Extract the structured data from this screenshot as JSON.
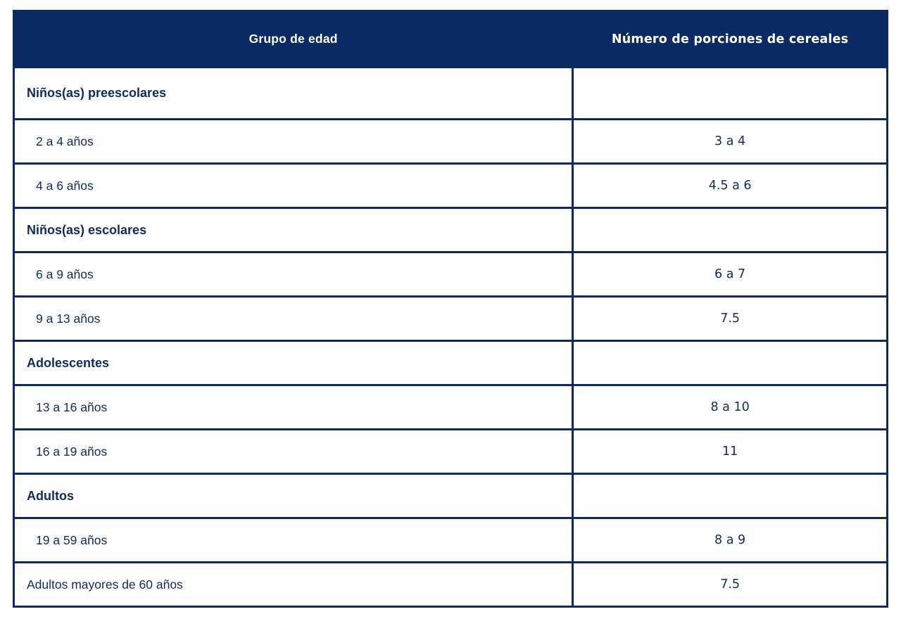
{
  "colors": {
    "navy": "#0b2a63",
    "header_text": "#ffffff",
    "body_text": "#0e2d63",
    "background": "#ffffff"
  },
  "table": {
    "headers": [
      {
        "label": "Grupo de edad"
      },
      {
        "label": "Número de porciones de cereales"
      }
    ],
    "rows": [
      {
        "type": "group",
        "label": "Niños(as) preescolares",
        "value": ""
      },
      {
        "type": "item",
        "label": "2 a 4 años",
        "value": "3 a 4"
      },
      {
        "type": "item",
        "label": "4 a 6 años",
        "value": "4.5 a 6"
      },
      {
        "type": "group",
        "label": "Niños(as) escolares",
        "value": ""
      },
      {
        "type": "item",
        "label": "6 a 9 años",
        "value": "6 a 7"
      },
      {
        "type": "item",
        "label": "9 a 13 años",
        "value": "7.5"
      },
      {
        "type": "group",
        "label": "Adolescentes",
        "value": ""
      },
      {
        "type": "item",
        "label": "13 a 16 años",
        "value": "8 a 10"
      },
      {
        "type": "item",
        "label": "16 a 19 años",
        "value": "11"
      },
      {
        "type": "group",
        "label": "Adultos",
        "value": ""
      },
      {
        "type": "item",
        "label": "19 a 59 años",
        "value": "8 a 9"
      },
      {
        "type": "plain",
        "label": "Adultos mayores de 60 años",
        "value": "7.5"
      }
    ]
  }
}
